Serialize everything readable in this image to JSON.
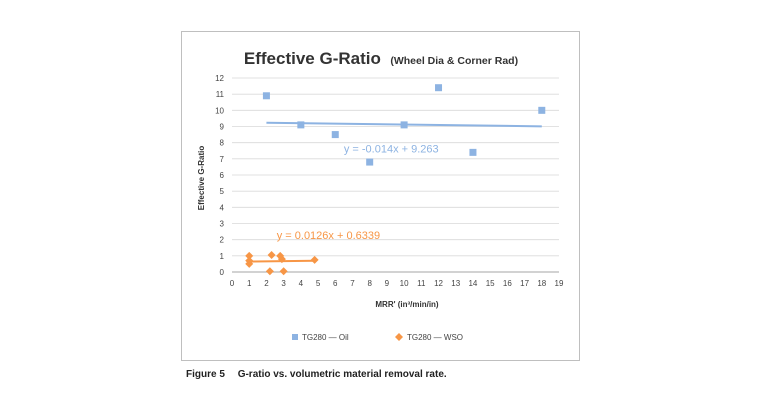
{
  "chart_data": {
    "type": "scatter",
    "title": "Effective G-Ratio",
    "subtitle": "(Wheel Dia & Corner Rad)",
    "xlabel": "MRR' (in³/min/in)",
    "ylabel": "Effective G-Ratio",
    "xlim": [
      0,
      19
    ],
    "ylim": [
      0,
      12
    ],
    "x_ticks": [
      "0",
      "1",
      "2",
      "3",
      "4",
      "5",
      "6",
      "7",
      "8",
      "9",
      "10",
      "11",
      "12",
      "13",
      "14",
      "15",
      "16",
      "17",
      "18",
      "19"
    ],
    "y_ticks": [
      "0",
      "1",
      "2",
      "3",
      "4",
      "5",
      "6",
      "7",
      "8",
      "9",
      "10",
      "11",
      "12"
    ],
    "grid": true,
    "legend_position": "bottom",
    "series": [
      {
        "name": "TG280 — Oil",
        "color": "#8db3e2",
        "marker": "square",
        "points": [
          {
            "x": 2,
            "y": 10.9
          },
          {
            "x": 4,
            "y": 9.1
          },
          {
            "x": 6,
            "y": 8.5
          },
          {
            "x": 8,
            "y": 6.8
          },
          {
            "x": 10,
            "y": 9.1
          },
          {
            "x": 12,
            "y": 11.4
          },
          {
            "x": 14,
            "y": 7.4
          },
          {
            "x": 18,
            "y": 10.0
          }
        ],
        "trendline": {
          "x_start": 2,
          "x_end": 18,
          "slope": -0.014,
          "intercept": 9.263,
          "label": "y = -0.014x + 9.263",
          "label_x": 6.5,
          "label_y": 7.4
        }
      },
      {
        "name": "TG280 — WSO",
        "color": "#f79646",
        "marker": "diamond",
        "points": [
          {
            "x": 1,
            "y": 0.5
          },
          {
            "x": 1,
            "y": 0.7
          },
          {
            "x": 1,
            "y": 1.0
          },
          {
            "x": 2.2,
            "y": 0.05
          },
          {
            "x": 2.3,
            "y": 1.05
          },
          {
            "x": 2.8,
            "y": 1.0
          },
          {
            "x": 2.9,
            "y": 0.8
          },
          {
            "x": 3.0,
            "y": 0.05
          },
          {
            "x": 4.8,
            "y": 0.75
          }
        ],
        "trendline": {
          "x_start": 1,
          "x_end": 4.8,
          "slope": 0.0126,
          "intercept": 0.6339,
          "label": "y = 0.0126x + 0.6339",
          "label_x": 2.6,
          "label_y": 2.05
        }
      }
    ]
  },
  "caption": {
    "figure": "Figure 5",
    "text": "G-ratio vs. volumetric material removal rate."
  }
}
